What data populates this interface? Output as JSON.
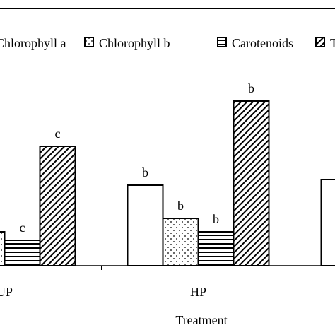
{
  "chart_data": {
    "type": "bar",
    "categories": [
      "UP",
      "HP",
      null
    ],
    "x_label": "Treatment",
    "series": [
      {
        "name": "Chlorophyll a",
        "pattern": "none",
        "values": [
          null,
          114,
          122
        ],
        "letters": [
          null,
          "b",
          null
        ]
      },
      {
        "name": "Chlorophyll b",
        "pattern": "dots",
        "values": [
          48,
          67,
          null
        ],
        "letters": [
          null,
          "b",
          null
        ]
      },
      {
        "name": "Carotenoids",
        "pattern": "horizontal",
        "values": [
          36,
          48,
          null
        ],
        "letters": [
          "c",
          "b",
          null
        ]
      },
      {
        "name": "T",
        "pattern": "diagonal",
        "values": [
          169,
          233,
          null
        ],
        "letters": [
          "c",
          "b",
          null
        ]
      }
    ]
  }
}
